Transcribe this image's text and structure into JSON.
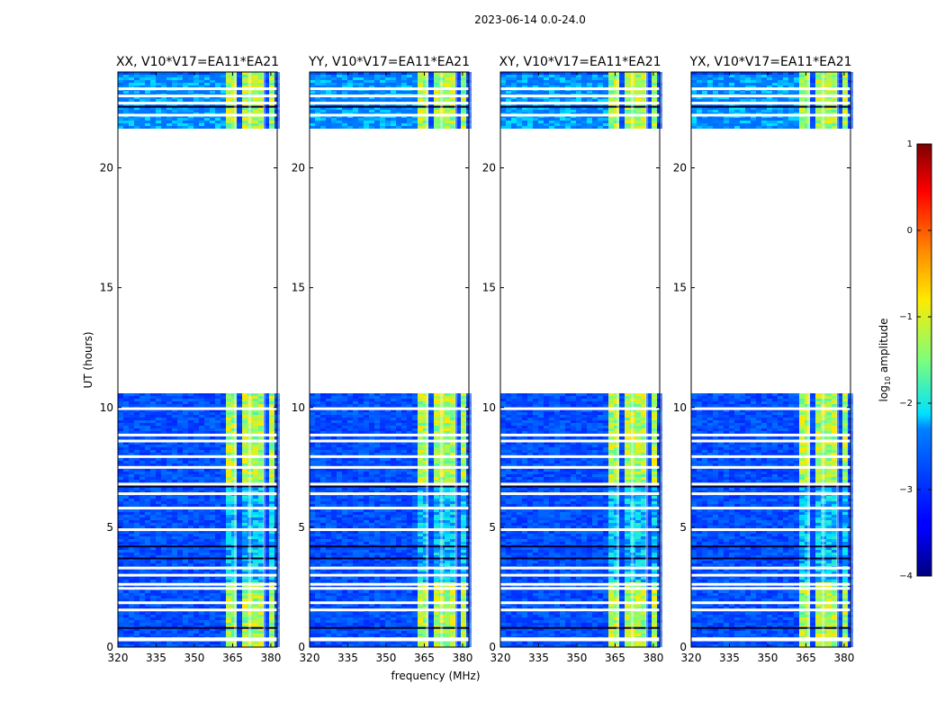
{
  "figure": {
    "suptitle": "2023-06-14 0.0-24.0",
    "ylabel": "UT (hours)",
    "xlabel": "frequency (MHz)"
  },
  "chart_data": [
    {
      "type": "heatmap",
      "title": "XX, V10*V17=EA11*EA21",
      "correlation": "XX",
      "x_ticks": [
        320,
        335,
        350,
        365,
        380
      ],
      "y_ticks": [
        0,
        5,
        10,
        15,
        20
      ],
      "xlim": [
        320,
        382.5
      ],
      "ylim": [
        0,
        24
      ],
      "bright_band_mhz": [
        361,
        380
      ],
      "data_gap_hours": [
        10.7,
        21.6
      ],
      "colormap": "jet",
      "colorbar_label": "log10 amplitude",
      "colorbar_ticks": [
        1,
        0,
        -1,
        -2,
        -3,
        -4
      ],
      "clim": [
        -4,
        1
      ]
    },
    {
      "type": "heatmap",
      "title": "YY, V10*V17=EA11*EA21",
      "correlation": "YY",
      "x_ticks": [
        320,
        335,
        350,
        365,
        380
      ],
      "y_ticks": [
        0,
        5,
        10,
        15,
        20
      ],
      "xlim": [
        320,
        382.5
      ],
      "ylim": [
        0,
        24
      ],
      "bright_band_mhz": [
        361,
        380
      ],
      "data_gap_hours": [
        10.7,
        21.6
      ]
    },
    {
      "type": "heatmap",
      "title": "XY, V10*V17=EA11*EA21",
      "correlation": "XY",
      "x_ticks": [
        320,
        335,
        350,
        365,
        380
      ],
      "y_ticks": [
        0,
        5,
        10,
        15,
        20
      ],
      "xlim": [
        320,
        382.5
      ],
      "ylim": [
        0,
        24
      ],
      "bright_band_mhz": [
        361,
        380
      ],
      "data_gap_hours": [
        10.7,
        21.6
      ]
    },
    {
      "type": "heatmap",
      "title": "YX, V10*V17=EA11*EA21",
      "correlation": "YX",
      "x_ticks": [
        320,
        335,
        350,
        365,
        380
      ],
      "y_ticks": [
        0,
        5,
        10,
        15,
        20
      ],
      "xlim": [
        320,
        382.5
      ],
      "ylim": [
        0,
        24
      ],
      "bright_band_mhz": [
        361,
        380
      ],
      "data_gap_hours": [
        10.7,
        21.6
      ]
    }
  ],
  "colorbar": {
    "label_prefix": "log",
    "label_sub": "10",
    "label_suffix": " amplitude",
    "ticks": [
      "1",
      "0",
      "−1",
      "−2",
      "−3",
      "−4"
    ],
    "tick_values": [
      1,
      0,
      -1,
      -2,
      -3,
      -4
    ],
    "range": [
      -4,
      1
    ]
  }
}
